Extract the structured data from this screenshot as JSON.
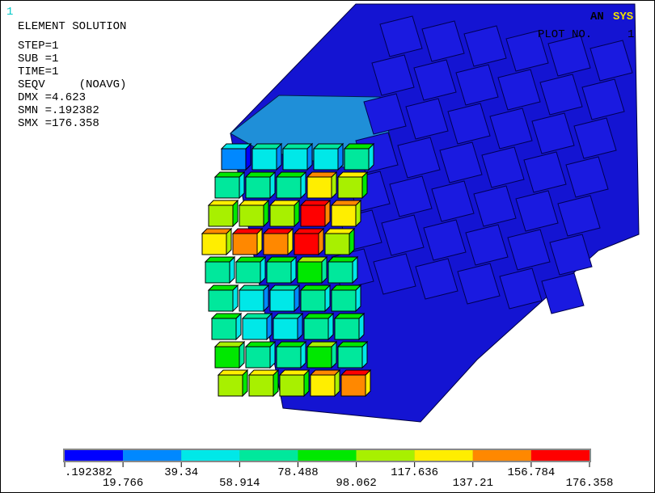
{
  "window_number": "1",
  "logo": {
    "part1": "AN",
    "part2": "SYS"
  },
  "plot_label": "PLOT NO.",
  "plot_number": "1",
  "info": [
    "ELEMENT SOLUTION",
    "STEP=1",
    "SUB =1",
    "TIME=1",
    "SEQV     (NOAVG)",
    "DMX =4.623",
    "SMN =.192382",
    "SMX =176.358"
  ],
  "legend": {
    "colors": [
      "#0000ff",
      "#0088ff",
      "#00e8e8",
      "#00e89c",
      "#00e800",
      "#a8f000",
      "#ffee00",
      "#ff8800",
      "#ff0000"
    ],
    "labels": [
      ".192382",
      "19.766",
      "39.34",
      "58.914",
      "78.488",
      "98.062",
      "117.636",
      "137.21",
      "156.784",
      "176.358"
    ]
  }
}
